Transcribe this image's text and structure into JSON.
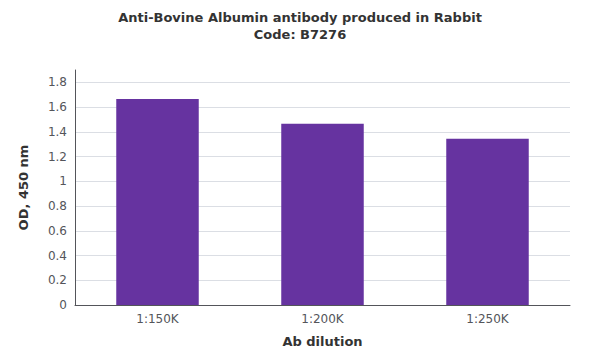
{
  "chart_data": {
    "type": "bar",
    "title": "Anti-Bovine Albumin antibody produced in Rabbit",
    "subtitle": "Code: B7276",
    "categories": [
      "1:150K",
      "1:200K",
      "1:250K"
    ],
    "values": [
      1.665,
      1.465,
      1.345
    ],
    "color": "#6633a0",
    "xlabel": "Ab dilution",
    "ylabel": "OD, 450 nm",
    "ylim": [
      0,
      1.9
    ],
    "yticks": [
      0,
      0.2,
      0.4,
      0.6,
      0.8,
      1,
      1.2,
      1.4,
      1.6,
      1.8
    ],
    "grid": true
  }
}
